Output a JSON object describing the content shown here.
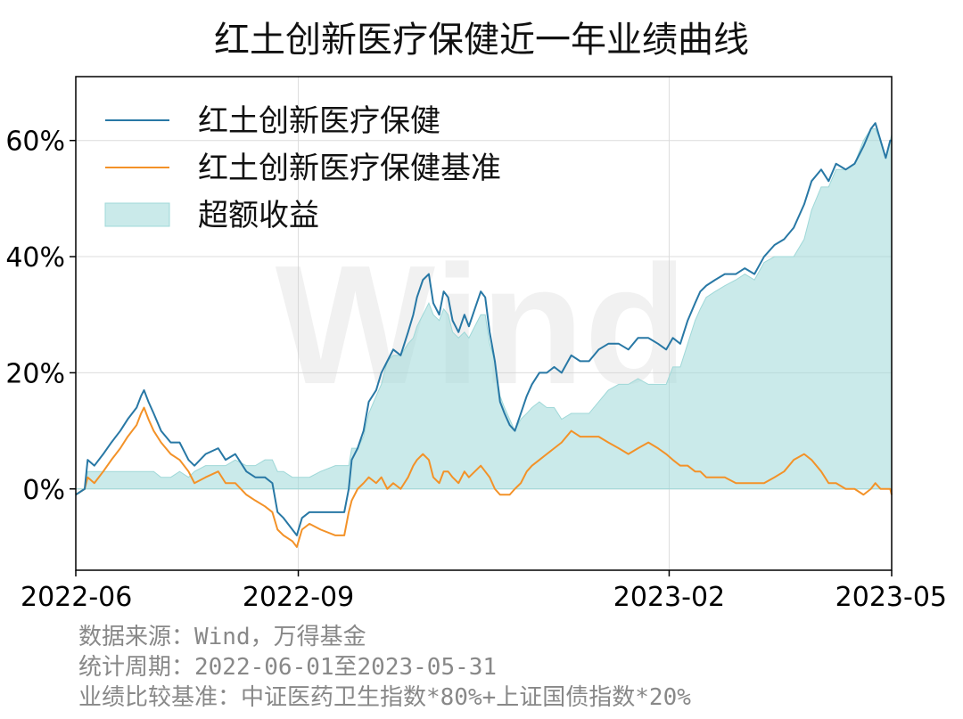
{
  "chart_data": {
    "type": "line",
    "title": "红土创新医疗保健近一年业绩曲线",
    "ylim": [
      -14,
      71
    ],
    "y_ticks": [
      0,
      20,
      40,
      60
    ],
    "y_tick_labels": [
      "0%",
      "20%",
      "40%",
      "60%"
    ],
    "x_ticks": [
      {
        "x": 0,
        "label": "2022-06"
      },
      {
        "x": 3,
        "label": "2022-09"
      },
      {
        "x": 8,
        "label": "2023-02"
      },
      {
        "x": 11,
        "label": "2023-05"
      }
    ],
    "xlim": [
      0,
      11
    ],
    "grid": true,
    "legend_position": "top-left",
    "watermark": "Wind",
    "series": [
      {
        "name": "红土创新医疗保健",
        "color": "#2878a5",
        "points": [
          [
            0,
            -1
          ],
          [
            0.12,
            0
          ],
          [
            0.16,
            5
          ],
          [
            0.25,
            4
          ],
          [
            0.37,
            6
          ],
          [
            0.48,
            8
          ],
          [
            0.6,
            10
          ],
          [
            0.7,
            12
          ],
          [
            0.82,
            14
          ],
          [
            0.88,
            16
          ],
          [
            0.92,
            17
          ],
          [
            0.98,
            15
          ],
          [
            1.05,
            13
          ],
          [
            1.15,
            10
          ],
          [
            1.28,
            8
          ],
          [
            1.4,
            8
          ],
          [
            1.52,
            5
          ],
          [
            1.6,
            4
          ],
          [
            1.75,
            6
          ],
          [
            1.92,
            7
          ],
          [
            2.02,
            5
          ],
          [
            2.15,
            6
          ],
          [
            2.3,
            3
          ],
          [
            2.42,
            2
          ],
          [
            2.55,
            2
          ],
          [
            2.65,
            1
          ],
          [
            2.72,
            -4
          ],
          [
            2.8,
            -5
          ],
          [
            2.92,
            -7
          ],
          [
            2.98,
            -8
          ],
          [
            3.05,
            -5
          ],
          [
            3.15,
            -4
          ],
          [
            3.3,
            -4
          ],
          [
            3.5,
            -4
          ],
          [
            3.62,
            -4
          ],
          [
            3.68,
            0
          ],
          [
            3.72,
            5
          ],
          [
            3.8,
            7
          ],
          [
            3.88,
            10
          ],
          [
            3.95,
            15
          ],
          [
            4.05,
            17
          ],
          [
            4.12,
            20
          ],
          [
            4.2,
            22
          ],
          [
            4.28,
            24
          ],
          [
            4.38,
            23
          ],
          [
            4.48,
            27
          ],
          [
            4.55,
            30
          ],
          [
            4.6,
            33
          ],
          [
            4.68,
            36
          ],
          [
            4.76,
            37
          ],
          [
            4.82,
            32
          ],
          [
            4.9,
            30
          ],
          [
            4.96,
            34
          ],
          [
            5.02,
            33
          ],
          [
            5.08,
            29
          ],
          [
            5.16,
            27
          ],
          [
            5.24,
            30
          ],
          [
            5.3,
            28
          ],
          [
            5.38,
            31
          ],
          [
            5.46,
            34
          ],
          [
            5.52,
            33
          ],
          [
            5.58,
            27
          ],
          [
            5.65,
            22
          ],
          [
            5.72,
            15
          ],
          [
            5.78,
            13
          ],
          [
            5.85,
            11
          ],
          [
            5.92,
            10
          ],
          [
            6.0,
            13
          ],
          [
            6.08,
            16
          ],
          [
            6.15,
            18
          ],
          [
            6.25,
            20
          ],
          [
            6.35,
            20
          ],
          [
            6.45,
            21
          ],
          [
            6.55,
            20
          ],
          [
            6.68,
            23
          ],
          [
            6.8,
            22
          ],
          [
            6.92,
            22
          ],
          [
            7.05,
            24
          ],
          [
            7.18,
            25
          ],
          [
            7.32,
            25
          ],
          [
            7.45,
            24
          ],
          [
            7.58,
            26
          ],
          [
            7.72,
            26
          ],
          [
            7.85,
            25
          ],
          [
            7.96,
            24
          ],
          [
            8.05,
            26
          ],
          [
            8.15,
            25
          ],
          [
            8.25,
            29
          ],
          [
            8.35,
            32
          ],
          [
            8.42,
            34
          ],
          [
            8.5,
            35
          ],
          [
            8.62,
            36
          ],
          [
            8.75,
            37
          ],
          [
            8.9,
            37
          ],
          [
            9.02,
            38
          ],
          [
            9.15,
            37
          ],
          [
            9.28,
            40
          ],
          [
            9.42,
            42
          ],
          [
            9.55,
            43
          ],
          [
            9.68,
            45
          ],
          [
            9.82,
            49
          ],
          [
            9.92,
            53
          ],
          [
            10.05,
            55
          ],
          [
            10.15,
            53
          ],
          [
            10.25,
            56
          ],
          [
            10.38,
            55
          ],
          [
            10.5,
            56
          ],
          [
            10.62,
            59
          ],
          [
            10.72,
            62
          ],
          [
            10.78,
            63
          ],
          [
            10.85,
            60
          ],
          [
            10.92,
            57
          ],
          [
            10.98,
            60
          ],
          [
            11.0,
            60
          ]
        ]
      },
      {
        "name": "红土创新医疗保健基准",
        "color": "#f39228",
        "points": [
          [
            0,
            -1
          ],
          [
            0.12,
            0
          ],
          [
            0.16,
            2
          ],
          [
            0.25,
            1
          ],
          [
            0.37,
            3
          ],
          [
            0.48,
            5
          ],
          [
            0.6,
            7
          ],
          [
            0.7,
            9
          ],
          [
            0.82,
            11
          ],
          [
            0.88,
            13
          ],
          [
            0.92,
            14
          ],
          [
            0.98,
            12
          ],
          [
            1.05,
            10
          ],
          [
            1.15,
            8
          ],
          [
            1.28,
            6
          ],
          [
            1.4,
            5
          ],
          [
            1.52,
            3
          ],
          [
            1.6,
            1
          ],
          [
            1.75,
            2
          ],
          [
            1.92,
            3
          ],
          [
            2.02,
            1
          ],
          [
            2.15,
            1
          ],
          [
            2.3,
            -1
          ],
          [
            2.42,
            -2
          ],
          [
            2.55,
            -3
          ],
          [
            2.65,
            -4
          ],
          [
            2.72,
            -7
          ],
          [
            2.8,
            -8
          ],
          [
            2.92,
            -9
          ],
          [
            2.98,
            -10
          ],
          [
            3.05,
            -7
          ],
          [
            3.15,
            -6
          ],
          [
            3.3,
            -7
          ],
          [
            3.5,
            -8
          ],
          [
            3.62,
            -8
          ],
          [
            3.68,
            -4
          ],
          [
            3.72,
            -2
          ],
          [
            3.8,
            0
          ],
          [
            3.88,
            1
          ],
          [
            3.95,
            2
          ],
          [
            4.05,
            1
          ],
          [
            4.12,
            2
          ],
          [
            4.2,
            0
          ],
          [
            4.28,
            1
          ],
          [
            4.38,
            0
          ],
          [
            4.48,
            2
          ],
          [
            4.55,
            4
          ],
          [
            4.6,
            5
          ],
          [
            4.68,
            6
          ],
          [
            4.76,
            5
          ],
          [
            4.82,
            2
          ],
          [
            4.9,
            1
          ],
          [
            4.96,
            3
          ],
          [
            5.02,
            3
          ],
          [
            5.08,
            2
          ],
          [
            5.16,
            1
          ],
          [
            5.24,
            3
          ],
          [
            5.3,
            2
          ],
          [
            5.38,
            3
          ],
          [
            5.46,
            4
          ],
          [
            5.52,
            3
          ],
          [
            5.58,
            2
          ],
          [
            5.65,
            0
          ],
          [
            5.72,
            -1
          ],
          [
            5.78,
            -1
          ],
          [
            5.85,
            -1
          ],
          [
            5.92,
            0
          ],
          [
            6.0,
            1
          ],
          [
            6.08,
            3
          ],
          [
            6.15,
            4
          ],
          [
            6.25,
            5
          ],
          [
            6.35,
            6
          ],
          [
            6.45,
            7
          ],
          [
            6.55,
            8
          ],
          [
            6.68,
            10
          ],
          [
            6.8,
            9
          ],
          [
            6.92,
            9
          ],
          [
            7.05,
            9
          ],
          [
            7.18,
            8
          ],
          [
            7.32,
            7
          ],
          [
            7.45,
            6
          ],
          [
            7.58,
            7
          ],
          [
            7.72,
            8
          ],
          [
            7.85,
            7
          ],
          [
            7.96,
            6
          ],
          [
            8.05,
            5
          ],
          [
            8.15,
            4
          ],
          [
            8.25,
            4
          ],
          [
            8.35,
            3
          ],
          [
            8.42,
            3
          ],
          [
            8.5,
            2
          ],
          [
            8.62,
            2
          ],
          [
            8.75,
            2
          ],
          [
            8.9,
            1
          ],
          [
            9.02,
            1
          ],
          [
            9.15,
            1
          ],
          [
            9.28,
            1
          ],
          [
            9.42,
            2
          ],
          [
            9.55,
            3
          ],
          [
            9.68,
            5
          ],
          [
            9.82,
            6
          ],
          [
            9.92,
            5
          ],
          [
            10.05,
            3
          ],
          [
            10.15,
            1
          ],
          [
            10.25,
            1
          ],
          [
            10.38,
            0
          ],
          [
            10.5,
            0
          ],
          [
            10.62,
            -1
          ],
          [
            10.72,
            0
          ],
          [
            10.78,
            1
          ],
          [
            10.85,
            0
          ],
          [
            10.92,
            0
          ],
          [
            10.98,
            0
          ],
          [
            11.0,
            -1
          ]
        ]
      }
    ],
    "excess": {
      "name": "超额收益",
      "fill": "#9fd8d8",
      "fill_opacity": 0.55
    }
  },
  "footer": {
    "line1": "数据来源：Wind，万得基金",
    "line2": "统计周期：2022-06-01至2023-05-31",
    "line3": "业绩比较基准：中证医药卫生指数*80%+上证国债指数*20%"
  }
}
